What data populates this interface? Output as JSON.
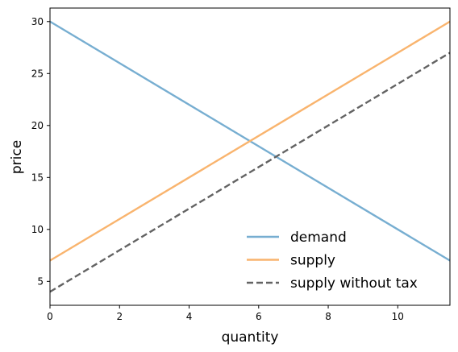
{
  "chart_data": {
    "type": "line",
    "title": "",
    "xlabel": "quantity",
    "ylabel": "price",
    "xlim": [
      0,
      11.5
    ],
    "ylim": [
      2.7,
      31.3
    ],
    "xticks": [
      0,
      2,
      4,
      6,
      8,
      10
    ],
    "yticks": [
      5,
      10,
      15,
      20,
      25,
      30
    ],
    "grid": false,
    "legend_position": "lower-right",
    "series": [
      {
        "name": "demand",
        "color": "#77aed1",
        "dash": "solid",
        "x": [
          0,
          11.5
        ],
        "y": [
          30,
          7
        ]
      },
      {
        "name": "supply",
        "color": "#f9b46e",
        "dash": "solid",
        "x": [
          0,
          11.5
        ],
        "y": [
          7,
          30
        ]
      },
      {
        "name": "supply without tax",
        "color": "#636363",
        "dash": "dashed",
        "x": [
          0,
          11.5
        ],
        "y": [
          4,
          27
        ]
      }
    ]
  }
}
